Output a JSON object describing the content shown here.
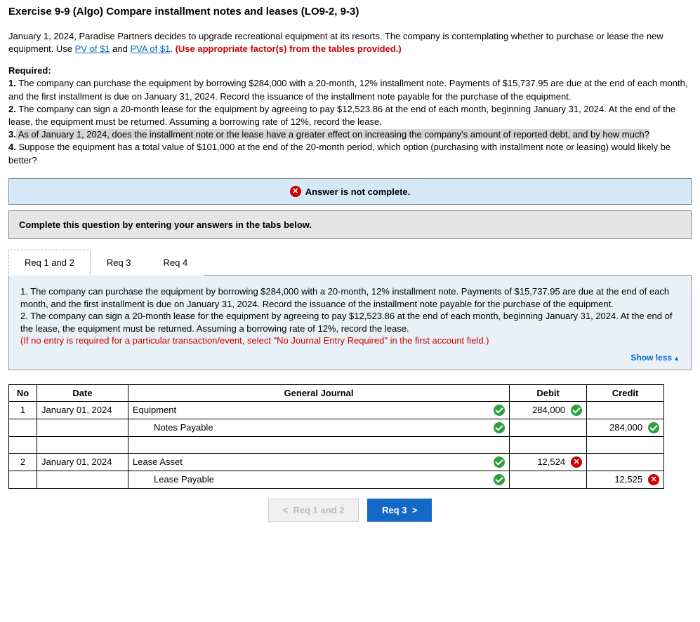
{
  "title": "Exercise 9-9 (Algo) Compare installment notes and leases (LO9-2, 9-3)",
  "intro": {
    "pre": "January 1, 2024, Paradise Partners decides to upgrade recreational equipment at its resorts. The company is contemplating whether to purchase or lease the new equipment. Use ",
    "link1": "PV of $1",
    "mid": " and ",
    "link2": "PVA of $1",
    "post": ". ",
    "red": "(Use appropriate factor(s) from the tables provided.)"
  },
  "required_label": "Required:",
  "reqs": {
    "r1a": "1.",
    "r1b": " The company can purchase the equipment by borrowing $284,000 with a 20-month, 12% installment note. Payments of $15,737.95 are due at the end of each month, and the first installment is due on January 31, 2024. Record the issuance of the installment note payable for the purchase of the equipment.",
    "r2a": "2.",
    "r2b": " The company can sign a 20-month lease for the equipment by agreeing to pay $12,523.86 at the end of each month, beginning January 31, 2024. At the end of the lease, the equipment must be returned. Assuming a borrowing rate of 12%, record the lease.",
    "r3a": "3.",
    "r3b_hl": " As of January 1, 2024, does the installment note or the lease have a greater effect on increasing the company's amount of reported debt, and by how much?",
    "r4a": "4.",
    "r4b": " Suppose the equipment has a total value of $101,000 at the end of the 20-month period, which option (purchasing with installment note or leasing) would likely be better?"
  },
  "banner_incomplete": "Answer is not complete.",
  "banner_complete": "Complete this question by entering your answers in the tabs below.",
  "tabs": {
    "t1": "Req 1 and 2",
    "t2": "Req 3",
    "t3": "Req 4"
  },
  "panel": {
    "p1": "1. The company can purchase the equipment by borrowing $284,000 with a 20-month, 12% installment note. Payments of $15,737.95 are due at the end of each month, and the first installment is due on January 31, 2024. Record the issuance of the installment note payable for the purchase of the equipment.",
    "p2": "2. The company can sign a 20-month lease for the equipment by agreeing to pay $12,523.86 at the end of each month, beginning January 31, 2024. At the end of the lease, the equipment must be returned. Assuming a borrowing rate of 12%, record the lease.",
    "note": "(If no entry is required for a particular transaction/event, select \"No Journal Entry Required\" in the first account field.)",
    "show_less": "Show less"
  },
  "journal": {
    "headers": {
      "no": "No",
      "date": "Date",
      "gj": "General Journal",
      "debit": "Debit",
      "credit": "Credit"
    },
    "rows": [
      {
        "no": "1",
        "date": "January 01, 2024",
        "account": "Equipment",
        "indent": false,
        "gj_mark": "check",
        "debit": "284,000",
        "debit_mark": "check",
        "credit": "",
        "credit_mark": ""
      },
      {
        "no": "",
        "date": "",
        "account": "Notes Payable",
        "indent": true,
        "gj_mark": "check",
        "debit": "",
        "debit_mark": "",
        "credit": "284,000",
        "credit_mark": "check"
      },
      {
        "no": "",
        "date": "",
        "account": "",
        "indent": false,
        "gj_mark": "",
        "debit": "",
        "debit_mark": "",
        "credit": "",
        "credit_mark": ""
      },
      {
        "no": "2",
        "date": "January 01, 2024",
        "account": "Lease Asset",
        "indent": false,
        "gj_mark": "check",
        "debit": "12,524",
        "debit_mark": "x",
        "credit": "",
        "credit_mark": ""
      },
      {
        "no": "",
        "date": "",
        "account": "Lease Payable",
        "indent": true,
        "gj_mark": "check",
        "debit": "",
        "debit_mark": "",
        "credit": "12,525",
        "credit_mark": "x"
      }
    ]
  },
  "nav": {
    "prev": "Req 1 and 2",
    "next": "Req 3"
  },
  "colors": {
    "link": "#0066cc",
    "red": "#cc0000",
    "highlight": "#d6d6d6",
    "banner_bg": "#d6e9f8",
    "panel_bg": "#e8f0f8",
    "check_green": "#2e9e3f",
    "nav_next_bg": "#1469c7"
  }
}
